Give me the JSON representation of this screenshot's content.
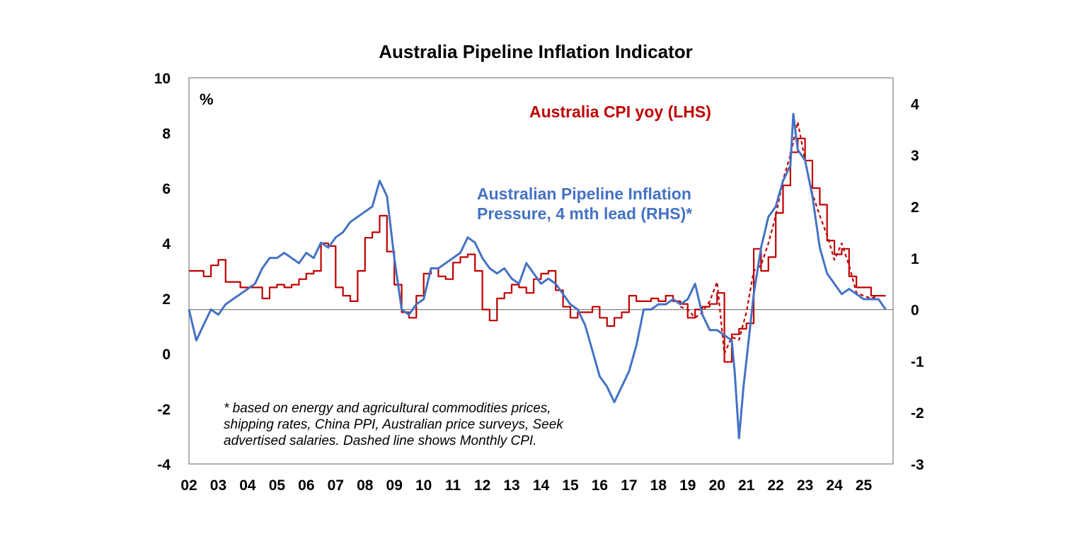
{
  "chart_data": {
    "type": "line",
    "title": "Australia Pipeline Inflation Indicator",
    "y_unit": "%",
    "x_tick_labels": [
      "02",
      "03",
      "04",
      "05",
      "06",
      "07",
      "08",
      "09",
      "10",
      "11",
      "12",
      "13",
      "14",
      "15",
      "16",
      "17",
      "18",
      "19",
      "20",
      "21",
      "22",
      "23",
      "24",
      "25"
    ],
    "x_range": [
      2002.0,
      2026.0
    ],
    "y_left": {
      "range": [
        -4,
        10
      ],
      "ticks": [
        -4,
        -2,
        0,
        2,
        4,
        6,
        8,
        10
      ]
    },
    "y_right": {
      "range": [
        -3,
        4.5
      ],
      "ticks": [
        -3,
        -2,
        -1,
        0,
        1,
        2,
        3,
        4
      ]
    },
    "grid": false,
    "series": [
      {
        "name": "Australia CPI yoy (LHS)",
        "axis": "left",
        "color": "#c00000",
        "style": "step",
        "x": [
          2002.0,
          2002.5,
          2002.75,
          2003.0,
          2003.25,
          2003.75,
          2004.0,
          2004.5,
          2004.75,
          2005.0,
          2005.25,
          2005.5,
          2005.75,
          2006.0,
          2006.25,
          2006.5,
          2006.75,
          2007.0,
          2007.25,
          2007.5,
          2007.75,
          2008.0,
          2008.25,
          2008.5,
          2008.75,
          2009.0,
          2009.25,
          2009.5,
          2009.75,
          2010.0,
          2010.25,
          2010.5,
          2010.75,
          2011.0,
          2011.25,
          2011.5,
          2011.75,
          2012.0,
          2012.25,
          2012.5,
          2012.75,
          2013.0,
          2013.25,
          2013.5,
          2013.75,
          2014.0,
          2014.25,
          2014.5,
          2014.75,
          2015.0,
          2015.25,
          2015.5,
          2015.75,
          2016.0,
          2016.25,
          2016.5,
          2016.75,
          2017.0,
          2017.25,
          2017.5,
          2017.75,
          2018.0,
          2018.25,
          2018.5,
          2018.75,
          2019.0,
          2019.25,
          2019.5,
          2019.75,
          2020.0,
          2020.25,
          2020.5,
          2020.75,
          2021.0,
          2021.25,
          2021.5,
          2021.75,
          2022.0,
          2022.25,
          2022.5,
          2022.75,
          2023.0,
          2023.25,
          2023.5,
          2023.75,
          2024.0,
          2024.25,
          2024.5,
          2024.75,
          2025.0,
          2025.25,
          2025.5
        ],
        "values": [
          3.0,
          2.8,
          3.2,
          3.4,
          2.6,
          2.4,
          2.4,
          2.0,
          2.4,
          2.5,
          2.4,
          2.5,
          2.7,
          2.9,
          3.0,
          4.0,
          3.9,
          2.4,
          2.1,
          1.9,
          3.0,
          4.2,
          4.4,
          5.0,
          3.7,
          2.5,
          1.5,
          1.3,
          2.1,
          2.9,
          3.1,
          2.8,
          2.7,
          3.3,
          3.5,
          3.6,
          3.0,
          1.6,
          1.2,
          2.0,
          2.2,
          2.5,
          2.4,
          2.2,
          2.7,
          2.9,
          3.0,
          2.3,
          1.7,
          1.3,
          1.5,
          1.5,
          1.7,
          1.3,
          1.0,
          1.3,
          1.5,
          2.1,
          1.9,
          1.9,
          2.0,
          1.9,
          2.1,
          1.9,
          1.8,
          1.3,
          1.6,
          1.7,
          1.8,
          2.2,
          -0.3,
          0.7,
          0.9,
          1.1,
          3.8,
          3.0,
          3.5,
          5.1,
          6.1,
          7.3,
          7.8,
          7.0,
          6.0,
          5.4,
          4.1,
          3.6,
          3.8,
          2.8,
          2.4,
          2.4,
          2.1,
          2.1
        ]
      },
      {
        "name": "Monthly CPI",
        "axis": "left",
        "color": "#c00000",
        "style": "dashed",
        "x": [
          2018.75,
          2019.0,
          2019.25,
          2019.5,
          2019.75,
          2020.0,
          2020.25,
          2020.5,
          2020.75,
          2021.0,
          2021.25,
          2021.5,
          2021.75,
          2022.0,
          2022.25,
          2022.5,
          2022.75,
          2023.0,
          2023.25,
          2023.5,
          2023.75,
          2024.0,
          2024.25,
          2024.5,
          2024.75,
          2025.0,
          2025.25,
          2025.5
        ],
        "values": [
          1.7,
          1.6,
          1.3,
          1.5,
          1.9,
          2.6,
          0.0,
          0.6,
          0.5,
          1.5,
          3.0,
          3.2,
          4.0,
          5.0,
          6.3,
          7.2,
          8.4,
          7.0,
          5.8,
          5.0,
          4.3,
          3.4,
          4.0,
          3.2,
          2.2,
          2.1,
          2.0,
          2.1
        ]
      },
      {
        "name": "Australian Pipeline Inflation Pressure, 4 mth lead (RHS)*",
        "axis": "right",
        "color": "#4472c4",
        "style": "solid",
        "x": [
          2002.0,
          2002.25,
          2002.5,
          2002.75,
          2003.0,
          2003.25,
          2003.5,
          2003.75,
          2004.0,
          2004.25,
          2004.5,
          2004.75,
          2005.0,
          2005.25,
          2005.5,
          2005.75,
          2006.0,
          2006.25,
          2006.5,
          2006.75,
          2007.0,
          2007.25,
          2007.5,
          2007.75,
          2008.0,
          2008.25,
          2008.5,
          2008.75,
          2009.0,
          2009.25,
          2009.5,
          2009.75,
          2010.0,
          2010.25,
          2010.5,
          2010.75,
          2011.0,
          2011.25,
          2011.5,
          2011.75,
          2012.0,
          2012.25,
          2012.5,
          2012.75,
          2013.0,
          2013.25,
          2013.5,
          2013.75,
          2014.0,
          2014.25,
          2014.5,
          2014.75,
          2015.0,
          2015.25,
          2015.5,
          2015.75,
          2016.0,
          2016.25,
          2016.5,
          2016.75,
          2017.0,
          2017.25,
          2017.5,
          2017.75,
          2018.0,
          2018.25,
          2018.5,
          2018.75,
          2019.0,
          2019.25,
          2019.5,
          2019.75,
          2020.0,
          2020.25,
          2020.5,
          2020.6,
          2020.75,
          2020.9,
          2021.0,
          2021.25,
          2021.5,
          2021.75,
          2022.0,
          2022.25,
          2022.5,
          2022.6,
          2022.75,
          2023.0,
          2023.25,
          2023.5,
          2023.75,
          2024.0,
          2024.25,
          2024.5,
          2024.75,
          2025.0,
          2025.25,
          2025.5,
          2025.75
        ],
        "values": [
          0.0,
          -0.6,
          -0.3,
          0.0,
          -0.1,
          0.1,
          0.2,
          0.3,
          0.4,
          0.5,
          0.8,
          1.0,
          1.0,
          1.1,
          1.0,
          0.9,
          1.1,
          1.0,
          1.3,
          1.2,
          1.4,
          1.5,
          1.7,
          1.8,
          1.9,
          2.0,
          2.5,
          2.2,
          1.0,
          0.0,
          -0.1,
          0.1,
          0.2,
          0.8,
          0.8,
          0.9,
          1.0,
          1.1,
          1.4,
          1.3,
          1.0,
          0.8,
          0.7,
          0.8,
          0.6,
          0.5,
          0.9,
          0.7,
          0.5,
          0.6,
          0.5,
          0.3,
          0.1,
          0.0,
          -0.3,
          -0.8,
          -1.3,
          -1.5,
          -1.8,
          -1.5,
          -1.2,
          -0.7,
          0.0,
          0.0,
          0.1,
          0.1,
          0.2,
          0.1,
          0.2,
          0.5,
          -0.1,
          -0.4,
          -0.4,
          -0.5,
          -0.6,
          -1.2,
          -2.5,
          -1.5,
          -1.0,
          0.3,
          1.2,
          1.8,
          2.0,
          2.5,
          2.8,
          3.8,
          3.1,
          2.9,
          2.2,
          1.2,
          0.7,
          0.5,
          0.3,
          0.4,
          0.3,
          0.2,
          0.2,
          0.2,
          0.0
        ]
      }
    ],
    "annotations": {
      "unit_label": "%",
      "series_label_red": "Australia CPI yoy (LHS)",
      "series_label_blue_line1": "Australian Pipeline Inflation",
      "series_label_blue_line2": "Pressure, 4 mth lead (RHS)*",
      "footnote_line1": "* based on energy and agricultural commodities prices,",
      "footnote_line2": "shipping rates, China PPI, Australian price surveys, Seek",
      "footnote_line3": "advertised salaries. Dashed line shows Monthly CPI."
    }
  }
}
